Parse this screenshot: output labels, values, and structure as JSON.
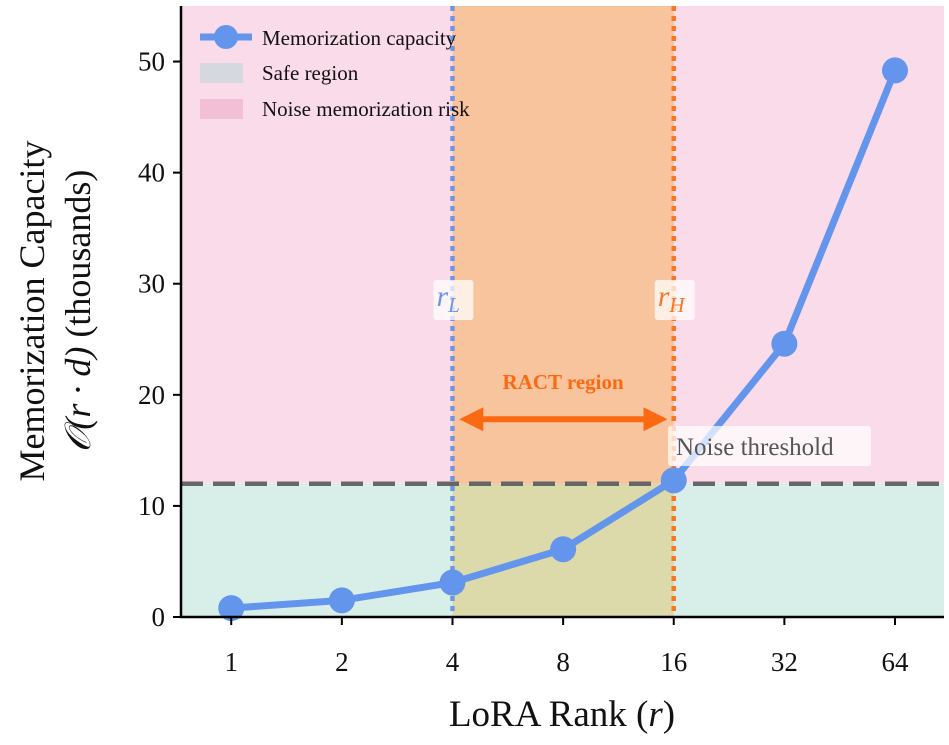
{
  "chart_data": {
    "type": "line",
    "x_scale": "log2",
    "categories": [
      "1",
      "2",
      "4",
      "8",
      "16",
      "32",
      "64"
    ],
    "x": [
      1,
      2,
      4,
      8,
      16,
      32,
      64
    ],
    "series": [
      {
        "name": "Memorization capacity",
        "values": [
          0.8,
          1.5,
          3.1,
          6.1,
          12.3,
          24.6,
          49.2
        ],
        "color": "#6495ed"
      }
    ],
    "xlabel": "LoRA Rank (r)",
    "xlabel_text": "LoRA Rank (",
    "xlabel_var": "r",
    "xlabel_close": ")",
    "ylabel_line1": "Memorization Capacity",
    "ylabel_line2_math": "𝒪(r · d)",
    "ylabel_line2_text": " (thousands)",
    "ylim": [
      0,
      55
    ],
    "yticks": [
      0,
      10,
      20,
      30,
      40,
      50
    ],
    "xlim": [
      0.73,
      87
    ],
    "legend_position": "top-left",
    "legend": [
      {
        "label": "Memorization capacity",
        "kind": "line-marker",
        "color": "#6495ed"
      },
      {
        "label": "Safe region",
        "kind": "patch",
        "color": "#d6d8df"
      },
      {
        "label": "Noise memorization risk",
        "kind": "patch",
        "color": "#f3bfd6"
      }
    ],
    "regions": {
      "noise_risk": {
        "y_from": 12,
        "y_to": 55,
        "color": "#f9dbe9"
      },
      "safe": {
        "y_from": 0,
        "y_to": 12,
        "color": "#d8efe9"
      },
      "ract_band": {
        "x_from": 4,
        "x_to": 16,
        "color": "#f8c49e"
      },
      "ract_band_safe": {
        "color": "#dcd9aa"
      }
    },
    "noise_threshold": {
      "y": 12,
      "label": "Noise threshold",
      "color": "#666666"
    },
    "vlines": [
      {
        "x": 4,
        "label": "r",
        "sub": "L",
        "color": "#6f95e5"
      },
      {
        "x": 16,
        "label": "r",
        "sub": "H",
        "color": "#f7772a"
      }
    ],
    "ract_arrow": {
      "x_from": 4.4,
      "x_to": 14.6,
      "y": 17.8,
      "label": "RACT region",
      "color": "#fb6a12"
    }
  }
}
